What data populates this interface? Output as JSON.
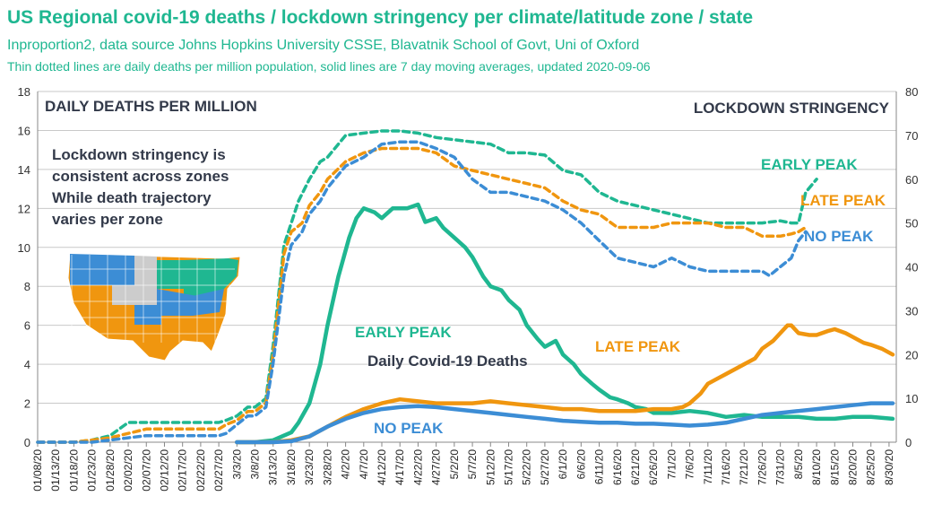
{
  "header": {
    "title": "US Regional covid-19 deaths / lockdown stringency per climate/latitude zone / state",
    "subtitle": "Inproportion2, data source Johns Hopkins University CSSE, Blavatnik School of Govt, Uni of Oxford",
    "note": "Thin dotted lines are daily deaths per million population, solid lines are 7 day moving averages, updated 2020-09-06"
  },
  "colors": {
    "early": "#1fb791",
    "late": "#f0960f",
    "none": "#3c8dd5",
    "text_dark": "#333a4a",
    "grid": "#c9c9c9",
    "title": "#1fb791"
  },
  "map_inset": {
    "icon": "us-states-map",
    "colors": [
      "#f0960f",
      "#3c8dd5",
      "#1fb791",
      "#cccccc"
    ]
  },
  "chart_data": {
    "type": "line",
    "left_axis_label": "DAILY DEATHS PER MILLION",
    "right_axis_label": "LOCKDOWN STRINGENCY",
    "ylim_left": [
      0,
      18
    ],
    "ylim_right": [
      0,
      80
    ],
    "left_ticks": [
      0,
      2,
      4,
      6,
      8,
      10,
      12,
      14,
      16,
      18
    ],
    "right_ticks": [
      0,
      10,
      20,
      30,
      40,
      50,
      60,
      70,
      80
    ],
    "x_tick_labels": [
      "01/08/20",
      "01/13/20",
      "01/18/20",
      "01/23/20",
      "01/28/20",
      "02/02/20",
      "02/07/20",
      "02/12/20",
      "02/17/20",
      "02/22/20",
      "02/27/20",
      "3/3/20",
      "3/8/20",
      "3/13/20",
      "3/18/20",
      "3/23/20",
      "3/28/20",
      "4/2/20",
      "4/7/20",
      "4/12/20",
      "4/17/20",
      "4/22/20",
      "4/27/20",
      "5/2/20",
      "5/7/20",
      "5/12/20",
      "5/17/20",
      "5/22/20",
      "5/27/20",
      "6/1/20",
      "6/6/20",
      "6/11/20",
      "6/16/20",
      "6/21/20",
      "6/26/20",
      "7/1/20",
      "7/6/20",
      "7/11/20",
      "7/16/20",
      "7/21/20",
      "7/26/20",
      "7/31/20",
      "8/5/20",
      "8/10/20",
      "8/15/20",
      "8/20/20",
      "8/25/20",
      "8/30/20"
    ],
    "x_tick_days": [
      0,
      5,
      10,
      15,
      20,
      25,
      30,
      35,
      40,
      45,
      50,
      55,
      60,
      65,
      70,
      75,
      80,
      85,
      90,
      95,
      100,
      105,
      110,
      115,
      120,
      125,
      130,
      135,
      140,
      145,
      150,
      155,
      160,
      165,
      170,
      175,
      180,
      185,
      190,
      195,
      200,
      205,
      210,
      215,
      220,
      225,
      230,
      235
    ],
    "series": [
      {
        "name": "EARLY PEAK",
        "kind": "deaths_7day_avg",
        "axis": "left",
        "color_key": "early",
        "x": [
          55,
          60,
          65,
          70,
          72,
          75,
          78,
          80,
          83,
          86,
          88,
          90,
          93,
          95,
          98,
          100,
          102,
          105,
          107,
          110,
          112,
          115,
          118,
          120,
          123,
          125,
          128,
          130,
          133,
          135,
          138,
          140,
          143,
          145,
          148,
          150,
          153,
          155,
          158,
          160,
          163,
          165,
          168,
          170,
          175,
          180,
          185,
          190,
          195,
          200,
          205,
          210,
          215,
          220,
          225,
          230,
          236
        ],
        "y": [
          0,
          0,
          0.1,
          0.5,
          1,
          2,
          4,
          6,
          8.5,
          10.5,
          11.5,
          12,
          11.8,
          11.5,
          12,
          12,
          12,
          12.2,
          11.3,
          11.5,
          11,
          10.5,
          10,
          9.5,
          8.5,
          8,
          7.8,
          7.3,
          6.8,
          6,
          5.3,
          4.9,
          5.2,
          4.5,
          4,
          3.5,
          3,
          2.7,
          2.3,
          2.2,
          2,
          1.8,
          1.7,
          1.5,
          1.5,
          1.6,
          1.5,
          1.3,
          1.4,
          1.3,
          1.3,
          1.3,
          1.2,
          1.2,
          1.3,
          1.3,
          1.2
        ]
      },
      {
        "name": "LATE PEAK",
        "kind": "deaths_7day_avg",
        "axis": "left",
        "color_key": "late",
        "x": [
          55,
          60,
          65,
          70,
          75,
          80,
          85,
          90,
          95,
          100,
          105,
          110,
          115,
          120,
          125,
          130,
          135,
          140,
          145,
          150,
          155,
          160,
          165,
          170,
          175,
          178,
          180,
          183,
          185,
          188,
          190,
          193,
          195,
          198,
          200,
          203,
          205,
          207,
          208,
          210,
          213,
          215,
          218,
          220,
          223,
          225,
          228,
          230,
          233,
          236
        ],
        "y": [
          0,
          0,
          0,
          0.1,
          0.3,
          0.8,
          1.3,
          1.7,
          2,
          2.2,
          2.1,
          2,
          2,
          2,
          2.1,
          2,
          1.9,
          1.8,
          1.7,
          1.7,
          1.6,
          1.6,
          1.6,
          1.7,
          1.7,
          1.8,
          2,
          2.5,
          3,
          3.3,
          3.5,
          3.8,
          4,
          4.3,
          4.8,
          5.2,
          5.6,
          6,
          6,
          5.6,
          5.5,
          5.5,
          5.7,
          5.8,
          5.6,
          5.4,
          5.1,
          5,
          4.8,
          4.5
        ]
      },
      {
        "name": "NO PEAK",
        "kind": "deaths_7day_avg",
        "axis": "left",
        "color_key": "none",
        "x": [
          55,
          60,
          65,
          70,
          75,
          80,
          85,
          90,
          95,
          100,
          105,
          110,
          115,
          120,
          125,
          130,
          135,
          140,
          145,
          150,
          155,
          160,
          165,
          170,
          175,
          180,
          185,
          190,
          195,
          200,
          205,
          210,
          215,
          220,
          225,
          230,
          236
        ],
        "y": [
          0,
          0,
          0,
          0.05,
          0.3,
          0.8,
          1.2,
          1.5,
          1.7,
          1.8,
          1.85,
          1.8,
          1.7,
          1.6,
          1.5,
          1.4,
          1.3,
          1.2,
          1.1,
          1.05,
          1.0,
          1.0,
          0.95,
          0.95,
          0.9,
          0.85,
          0.9,
          1.0,
          1.2,
          1.4,
          1.5,
          1.6,
          1.7,
          1.8,
          1.9,
          2.0,
          2.0
        ]
      },
      {
        "name": "EARLY PEAK",
        "kind": "stringency",
        "axis": "right",
        "color_key": "early",
        "x": [
          0,
          10,
          15,
          20,
          25,
          30,
          35,
          40,
          45,
          50,
          52,
          55,
          58,
          60,
          63,
          65,
          68,
          70,
          72,
          75,
          78,
          80,
          85,
          90,
          95,
          100,
          105,
          110,
          115,
          120,
          125,
          130,
          135,
          140,
          145,
          150,
          155,
          160,
          165,
          170,
          175,
          180,
          185,
          190,
          195,
          200,
          205,
          208,
          210,
          212,
          215
        ],
        "y": [
          0,
          0,
          0.5,
          1.5,
          4.5,
          4.5,
          4.5,
          4.5,
          4.5,
          4.5,
          5,
          6,
          8,
          8,
          10,
          22,
          45,
          50,
          55,
          60,
          64,
          65,
          70,
          70.5,
          71,
          71,
          70.5,
          69.5,
          69,
          68.5,
          68,
          66,
          66,
          65.5,
          62,
          61,
          57,
          55,
          54,
          53,
          52,
          51,
          50,
          50,
          50,
          50,
          50.5,
          50,
          50,
          57,
          60
        ]
      },
      {
        "name": "LATE PEAK",
        "kind": "stringency",
        "axis": "right",
        "color_key": "late",
        "x": [
          0,
          10,
          15,
          20,
          25,
          30,
          35,
          40,
          45,
          50,
          52,
          55,
          58,
          60,
          63,
          65,
          68,
          70,
          73,
          75,
          78,
          80,
          85,
          90,
          95,
          100,
          105,
          110,
          115,
          120,
          125,
          130,
          135,
          140,
          145,
          150,
          155,
          160,
          165,
          170,
          175,
          180,
          185,
          190,
          195,
          200,
          205,
          208,
          210,
          212
        ],
        "y": [
          0,
          0,
          0.5,
          1,
          2,
          3,
          3,
          3,
          3,
          3,
          4,
          5,
          7,
          7,
          9,
          20,
          43,
          48,
          50,
          54,
          57,
          60,
          64,
          66,
          67,
          67,
          67,
          66,
          63,
          62,
          61,
          60,
          59,
          58,
          55,
          53,
          52,
          49,
          49,
          49,
          50,
          50,
          50,
          49,
          49,
          47,
          47,
          47.5,
          48,
          49
        ]
      },
      {
        "name": "NO PEAK",
        "kind": "stringency",
        "axis": "right",
        "color_key": "none",
        "x": [
          0,
          10,
          15,
          20,
          25,
          30,
          35,
          40,
          45,
          50,
          52,
          55,
          58,
          60,
          63,
          65,
          68,
          70,
          73,
          75,
          78,
          80,
          85,
          90,
          95,
          100,
          105,
          110,
          115,
          120,
          125,
          130,
          135,
          140,
          145,
          150,
          155,
          160,
          165,
          170,
          175,
          180,
          185,
          190,
          195,
          200,
          202,
          205,
          208,
          210,
          212
        ],
        "y": [
          0,
          0,
          0,
          0.5,
          1,
          1.5,
          1.5,
          1.5,
          1.5,
          1.5,
          2,
          4,
          6,
          6,
          8,
          18,
          38,
          45,
          48,
          52,
          55,
          58,
          63,
          65,
          68,
          68.5,
          68.5,
          67,
          65,
          60,
          57,
          57,
          56,
          55,
          53,
          50,
          46,
          42,
          41,
          40,
          42,
          40,
          39,
          39,
          39,
          39,
          38,
          40,
          42,
          46,
          48
        ]
      }
    ],
    "annotations": [
      {
        "text": "DAILY DEATHS PER MILLION",
        "color_key": "text_dark"
      },
      {
        "text": "LOCKDOWN STRINGENCY",
        "color_key": "text_dark"
      },
      {
        "lines": [
          "Lockdown stringency is",
          "consistent across zones",
          "While death trajectory",
          "varies per zone"
        ],
        "color_key": "text_dark"
      },
      {
        "text": "EARLY PEAK",
        "color_key": "early"
      },
      {
        "text": "LATE PEAK",
        "color_key": "late"
      },
      {
        "text": "NO PEAK",
        "color_key": "none"
      },
      {
        "text": "EARLY PEAK",
        "color_key": "early"
      },
      {
        "text": "Daily Covid-19 Deaths",
        "color_key": "text_dark"
      },
      {
        "text": "LATE PEAK",
        "color_key": "late"
      },
      {
        "text": "NO PEAK",
        "color_key": "none"
      }
    ]
  }
}
